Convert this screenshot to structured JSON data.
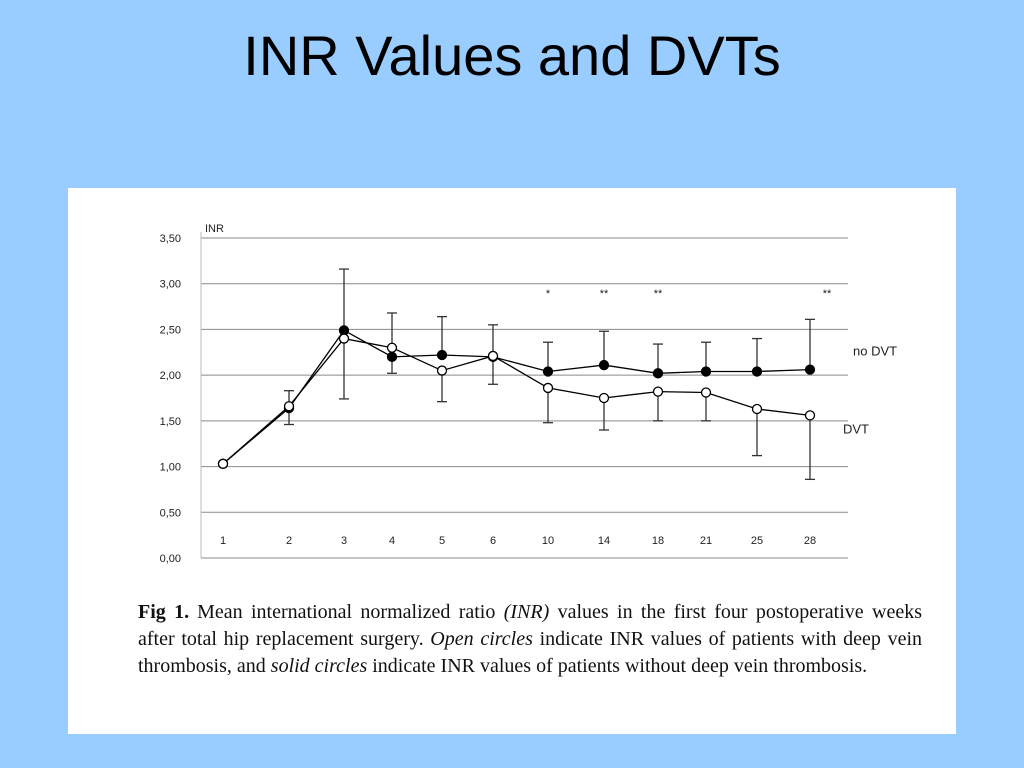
{
  "slide": {
    "title": "INR Values and DVTs"
  },
  "caption": {
    "label": "Fig 1.",
    "p1": "Mean international normalized ratio ",
    "em1": "(INR)",
    "p2": " values in the first four postoperative weeks after total hip replacement surgery. ",
    "em2": "Open circles",
    "p3": " indicate INR values of patients with deep vein thrombosis, and ",
    "em3": "solid circles",
    "p4": " indicate INR values of patients without deep vein thrombosis."
  },
  "chart_data": {
    "type": "line",
    "ylabel": "INR",
    "xlabel": "",
    "ylim": [
      0,
      3.5
    ],
    "y_ticks": [
      "0,00",
      "0,50",
      "1,00",
      "1,50",
      "2,00",
      "2,50",
      "3,00",
      "3,50"
    ],
    "categories": [
      "1",
      "2",
      "3",
      "4",
      "5",
      "6",
      "10",
      "14",
      "18",
      "21",
      "25",
      "28"
    ],
    "grid": "horizontal",
    "series": [
      {
        "name": "no DVT",
        "marker": "solid-circle",
        "color": "#000000",
        "values": [
          1.03,
          1.64,
          2.49,
          2.2,
          2.22,
          2.2,
          2.04,
          2.11,
          2.02,
          2.04,
          2.04,
          2.06
        ],
        "err_high": [
          null,
          1.83,
          3.16,
          2.68,
          2.64,
          2.55,
          2.36,
          2.48,
          2.34,
          2.36,
          2.4,
          2.61
        ],
        "err_low": [
          null,
          1.46,
          null,
          2.02,
          null,
          null,
          null,
          null,
          null,
          null,
          null,
          null
        ]
      },
      {
        "name": "DVT",
        "marker": "open-circle",
        "color": "#000000",
        "values": [
          1.03,
          1.66,
          2.4,
          2.3,
          2.05,
          2.21,
          1.86,
          1.75,
          1.82,
          1.81,
          1.63,
          1.56
        ],
        "err_high": [
          null,
          null,
          null,
          null,
          null,
          null,
          null,
          null,
          null,
          null,
          null,
          null
        ],
        "err_low": [
          null,
          null,
          1.74,
          null,
          1.71,
          1.9,
          1.48,
          1.4,
          1.5,
          1.5,
          1.12,
          0.86
        ]
      }
    ],
    "annotations": [
      {
        "category": "10",
        "text": "*"
      },
      {
        "category": "14",
        "text": "**"
      },
      {
        "category": "18",
        "text": "**"
      },
      {
        "category": "28",
        "text": "**"
      }
    ]
  }
}
